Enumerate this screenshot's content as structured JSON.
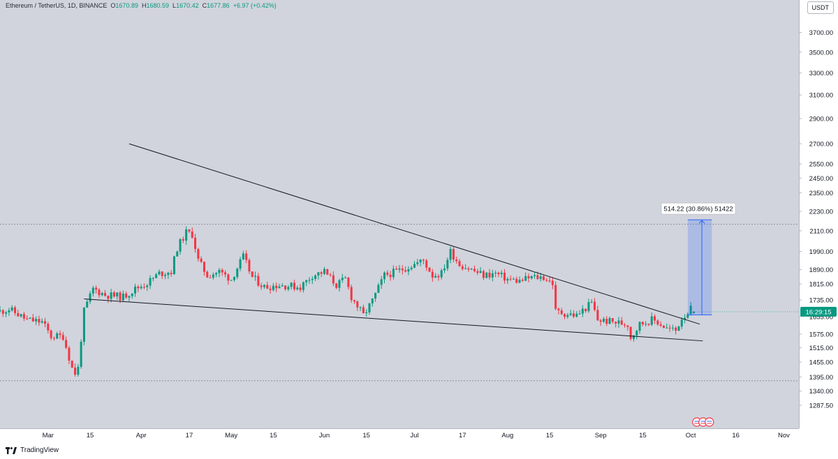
{
  "legend": {
    "symbol": "Ethereum / TetherUS, 1D, BINANCE",
    "o_key": "O",
    "o_val": "1670.89",
    "h_key": "H",
    "h_val": "1680.59",
    "l_key": "L",
    "l_val": "1670.42",
    "c_key": "C",
    "c_val": "1677.86",
    "change": "+6.97 (+0.42%)"
  },
  "currency": "USDT",
  "brand": "TradingView",
  "colors": {
    "bull": "#089981",
    "bear": "#f23645",
    "background": "#d1d4dc",
    "trendline": "#131722",
    "measure_fill": "#2962ff",
    "last_price_badge": "#089981"
  },
  "chart_data": {
    "type": "candlestick",
    "symbol": "ETH/USDT",
    "timeframe": "1D",
    "exchange": "BINANCE",
    "y_scale": "log",
    "ylim": [
      1240,
      3900
    ],
    "price_ticks": [
      "3700.00",
      "3500.00",
      "3300.00",
      "3100.00",
      "2900.00",
      "2700.00",
      "2550.00",
      "2450.00",
      "2350.00",
      "2230.00",
      "2110.00",
      "1990.00",
      "1890.00",
      "1815.00",
      "1735.00",
      "1655.00",
      "1575.00",
      "1515.00",
      "1455.00",
      "1395.00",
      "1340.00",
      "1287.50"
    ],
    "x_range": [
      "2023-02-13",
      "2023-11-06"
    ],
    "time_ticks": [
      {
        "date": "2023-03-01",
        "label": "Mar"
      },
      {
        "date": "2023-03-15",
        "label": "15"
      },
      {
        "date": "2023-04-01",
        "label": "Apr"
      },
      {
        "date": "2023-04-17",
        "label": "17"
      },
      {
        "date": "2023-05-01",
        "label": "May"
      },
      {
        "date": "2023-05-15",
        "label": "15"
      },
      {
        "date": "2023-06-01",
        "label": "Jun"
      },
      {
        "date": "2023-06-15",
        "label": "15"
      },
      {
        "date": "2023-07-01",
        "label": "Jul"
      },
      {
        "date": "2023-07-17",
        "label": "17"
      },
      {
        "date": "2023-08-01",
        "label": "Aug"
      },
      {
        "date": "2023-08-15",
        "label": "15"
      },
      {
        "date": "2023-09-01",
        "label": "Sep"
      },
      {
        "date": "2023-09-15",
        "label": "15"
      },
      {
        "date": "2023-10-01",
        "label": "Oct"
      },
      {
        "date": "2023-10-16",
        "label": "16"
      },
      {
        "date": "2023-11-01",
        "label": "Nov"
      }
    ],
    "close_path": [
      [
        "2023-02-13",
        1680
      ],
      [
        "2023-02-16",
        1690
      ],
      [
        "2023-02-22",
        1640
      ],
      [
        "2023-02-27",
        1630
      ],
      [
        "2023-03-02",
        1565
      ],
      [
        "2023-03-06",
        1565
      ],
      [
        "2023-03-09",
        1430
      ],
      [
        "2023-03-10",
        1410
      ],
      [
        "2023-03-11",
        1430
      ],
      [
        "2023-03-13",
        1680
      ],
      [
        "2023-03-16",
        1790
      ],
      [
        "2023-03-20",
        1760
      ],
      [
        "2023-03-26",
        1750
      ],
      [
        "2023-03-30",
        1790
      ],
      [
        "2023-04-03",
        1820
      ],
      [
        "2023-04-07",
        1870
      ],
      [
        "2023-04-11",
        1880
      ],
      [
        "2023-04-13",
        2010
      ],
      [
        "2023-04-16",
        2100
      ],
      [
        "2023-04-18",
        2090
      ],
      [
        "2023-04-20",
        1940
      ],
      [
        "2023-04-23",
        1860
      ],
      [
        "2023-04-27",
        1880
      ],
      [
        "2023-05-01",
        1840
      ],
      [
        "2023-05-05",
        1960
      ],
      [
        "2023-05-08",
        1850
      ],
      [
        "2023-05-12",
        1800
      ],
      [
        "2023-05-17",
        1810
      ],
      [
        "2023-05-24",
        1800
      ],
      [
        "2023-05-28",
        1860
      ],
      [
        "2023-06-01",
        1880
      ],
      [
        "2023-06-05",
        1810
      ],
      [
        "2023-06-08",
        1840
      ],
      [
        "2023-06-10",
        1750
      ],
      [
        "2023-06-14",
        1660
      ],
      [
        "2023-06-17",
        1730
      ],
      [
        "2023-06-21",
        1860
      ],
      [
        "2023-06-25",
        1880
      ],
      [
        "2023-07-01",
        1920
      ],
      [
        "2023-07-04",
        1940
      ],
      [
        "2023-07-07",
        1860
      ],
      [
        "2023-07-10",
        1870
      ],
      [
        "2023-07-13",
        1990
      ],
      [
        "2023-07-16",
        1920
      ],
      [
        "2023-07-20",
        1890
      ],
      [
        "2023-07-24",
        1860
      ],
      [
        "2023-07-28",
        1870
      ],
      [
        "2023-08-01",
        1840
      ],
      [
        "2023-08-05",
        1830
      ],
      [
        "2023-08-09",
        1850
      ],
      [
        "2023-08-13",
        1850
      ],
      [
        "2023-08-16",
        1820
      ],
      [
        "2023-08-17",
        1680
      ],
      [
        "2023-08-20",
        1670
      ],
      [
        "2023-08-24",
        1660
      ],
      [
        "2023-08-29",
        1720
      ],
      [
        "2023-08-31",
        1640
      ],
      [
        "2023-09-05",
        1630
      ],
      [
        "2023-09-10",
        1620
      ],
      [
        "2023-09-11",
        1560
      ],
      [
        "2023-09-14",
        1620
      ],
      [
        "2023-09-18",
        1640
      ],
      [
        "2023-09-20",
        1630
      ],
      [
        "2023-09-23",
        1600
      ],
      [
        "2023-09-26",
        1590
      ],
      [
        "2023-09-28",
        1650
      ],
      [
        "2023-10-01",
        1690
      ],
      [
        "2023-10-02",
        1677.86
      ]
    ],
    "trendlines": [
      {
        "name": "upper",
        "from": [
          "2023-03-28",
          2700
        ],
        "to": [
          "2023-10-04",
          1620
        ]
      },
      {
        "name": "lower",
        "from": [
          "2023-03-13",
          1740
        ],
        "to": [
          "2023-10-05",
          1545
        ]
      }
    ],
    "horizontal_levels": [
      2150,
      1380
    ],
    "measure": {
      "label": "514.22 (30.86%) 51422",
      "from_price": 1663,
      "to_price": 2177,
      "from_date": "2023-09-30",
      "to_date": "2023-10-08",
      "start_date": "2023-10-01"
    },
    "last_price": {
      "value": 1677.86,
      "countdown": "16:29:15"
    }
  }
}
